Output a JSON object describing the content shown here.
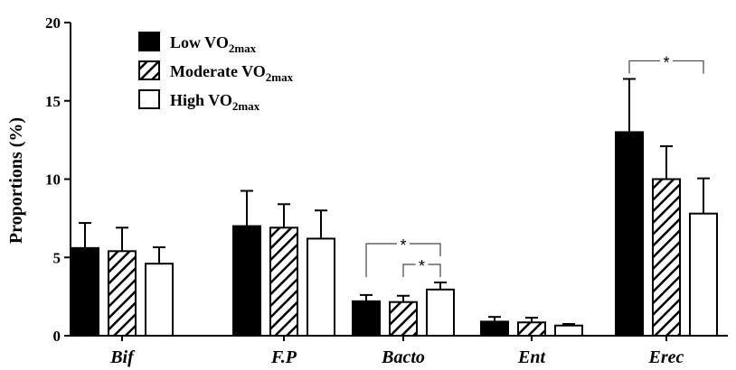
{
  "chart_data": {
    "type": "bar",
    "title": "",
    "xlabel": "",
    "ylabel": "Proportions (%)",
    "ylim": [
      0,
      20
    ],
    "yticks": [
      0,
      5,
      10,
      15,
      20
    ],
    "grid": false,
    "legend_position": "top-left",
    "categories": [
      "Bif",
      "F.P",
      "Bacto",
      "Ent",
      "Erec"
    ],
    "series": [
      {
        "name": "Low VO2max",
        "label_main": "Low VO",
        "label_sub": "2max",
        "fill": "solid-black",
        "values": [
          5.6,
          7.0,
          2.2,
          0.9,
          13.0
        ],
        "errors": [
          1.6,
          2.25,
          0.4,
          0.3,
          3.4
        ]
      },
      {
        "name": "Moderate VO2max",
        "label_main": "Moderate VO",
        "label_sub": "2max",
        "fill": "diagonal-hatch",
        "values": [
          5.4,
          6.9,
          2.15,
          0.85,
          10.0
        ],
        "errors": [
          1.5,
          1.5,
          0.4,
          0.3,
          2.1
        ]
      },
      {
        "name": "High VO2max",
        "label_main": "High VO",
        "label_sub": "2max",
        "fill": "white",
        "values": [
          4.6,
          6.2,
          2.95,
          0.65,
          7.8
        ],
        "errors": [
          1.05,
          1.8,
          0.45,
          0.1,
          2.25
        ]
      }
    ],
    "significance": [
      {
        "category": "Bacto",
        "from_series": 0,
        "to_series": 2,
        "label": "*",
        "level": 2
      },
      {
        "category": "Bacto",
        "from_series": 1,
        "to_series": 2,
        "label": "*",
        "level": 1
      },
      {
        "category": "Erec",
        "from_series": 0,
        "to_series": 2,
        "label": "*",
        "level": 1
      }
    ],
    "colors": {
      "axis": "#000000",
      "bar_dark": "#000000",
      "bar_light": "#ffffff"
    }
  }
}
